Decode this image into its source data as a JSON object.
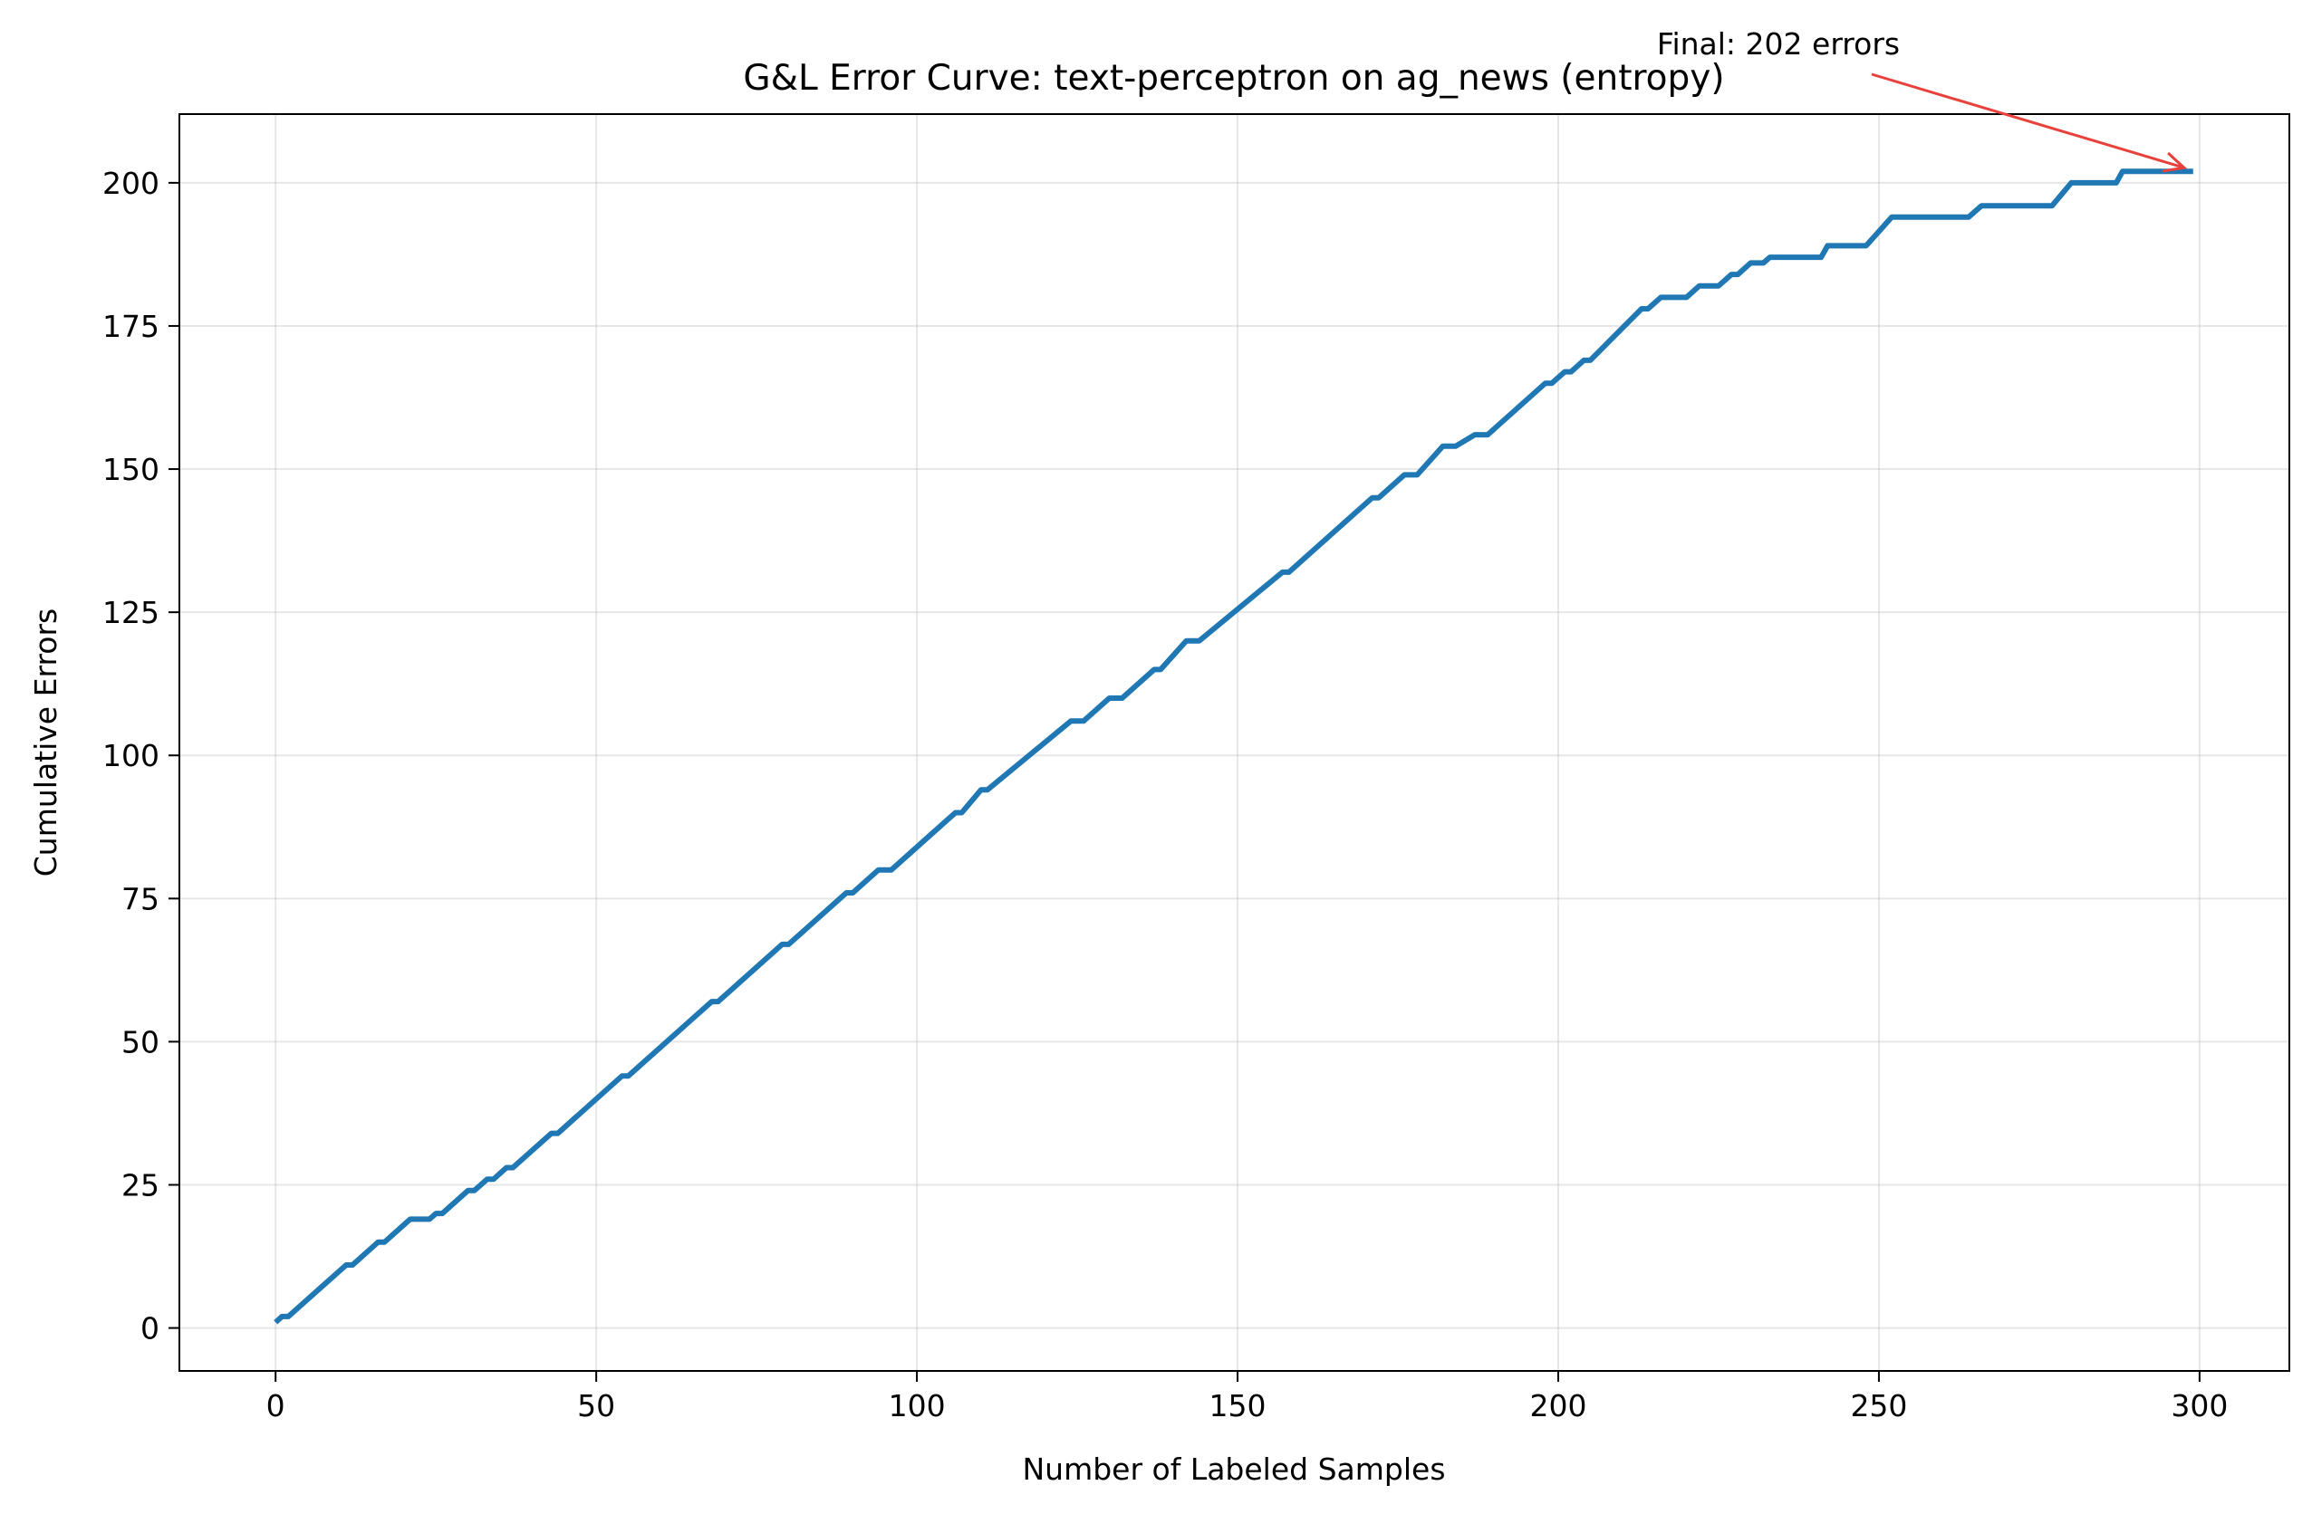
{
  "chart_data": {
    "type": "line",
    "title": "G&L Error Curve: text-perceptron on ag_news (entropy)",
    "xlabel": "Number of Labeled Samples",
    "ylabel": "Cumulative Errors",
    "xlim": [
      -15,
      314
    ],
    "ylim": [
      -7.5,
      212
    ],
    "xticks": [
      0,
      50,
      100,
      150,
      200,
      250,
      300
    ],
    "yticks": [
      0,
      25,
      50,
      75,
      100,
      125,
      150,
      175,
      200
    ],
    "grid": true,
    "series": [
      {
        "color": "#1f77b4",
        "x": [
          0,
          1,
          2,
          11,
          12,
          16,
          17,
          21,
          24,
          25,
          26,
          30,
          31,
          33,
          34,
          36,
          37,
          43,
          44,
          54,
          55,
          68,
          69,
          79,
          80,
          89,
          90,
          94,
          96,
          106,
          107,
          110,
          111,
          124,
          126,
          130,
          132,
          137,
          138,
          142,
          144,
          157,
          158,
          171,
          172,
          176,
          178,
          182,
          184,
          187,
          189,
          198,
          199,
          201,
          202,
          204,
          205,
          213,
          214,
          216,
          217,
          219,
          220,
          222,
          225,
          227,
          228,
          230,
          232,
          233,
          234,
          241,
          242,
          247,
          248,
          252,
          253,
          263,
          264,
          266,
          267,
          276,
          277,
          280,
          281,
          287,
          288,
          299
        ],
        "y": [
          1,
          2,
          2,
          11,
          11,
          15,
          15,
          19,
          19,
          20,
          20,
          24,
          24,
          26,
          26,
          28,
          28,
          34,
          34,
          44,
          44,
          57,
          57,
          67,
          67,
          76,
          76,
          80,
          80,
          90,
          90,
          94,
          94,
          106,
          106,
          110,
          110,
          115,
          115,
          120,
          120,
          132,
          132,
          145,
          145,
          149,
          149,
          154,
          154,
          156,
          156,
          165,
          165,
          167,
          167,
          169,
          169,
          178,
          178,
          180,
          180,
          180,
          180,
          182,
          182,
          184,
          184,
          186,
          186,
          187,
          187,
          187,
          189,
          189,
          189,
          194,
          194,
          194,
          194,
          196,
          196,
          196,
          196,
          200,
          200,
          200,
          202,
          202
        ]
      }
    ],
    "annotations": [
      {
        "text": "Final: 202 errors",
        "x": 299,
        "y": 202,
        "arrow_color": "#e8413c"
      }
    ]
  }
}
